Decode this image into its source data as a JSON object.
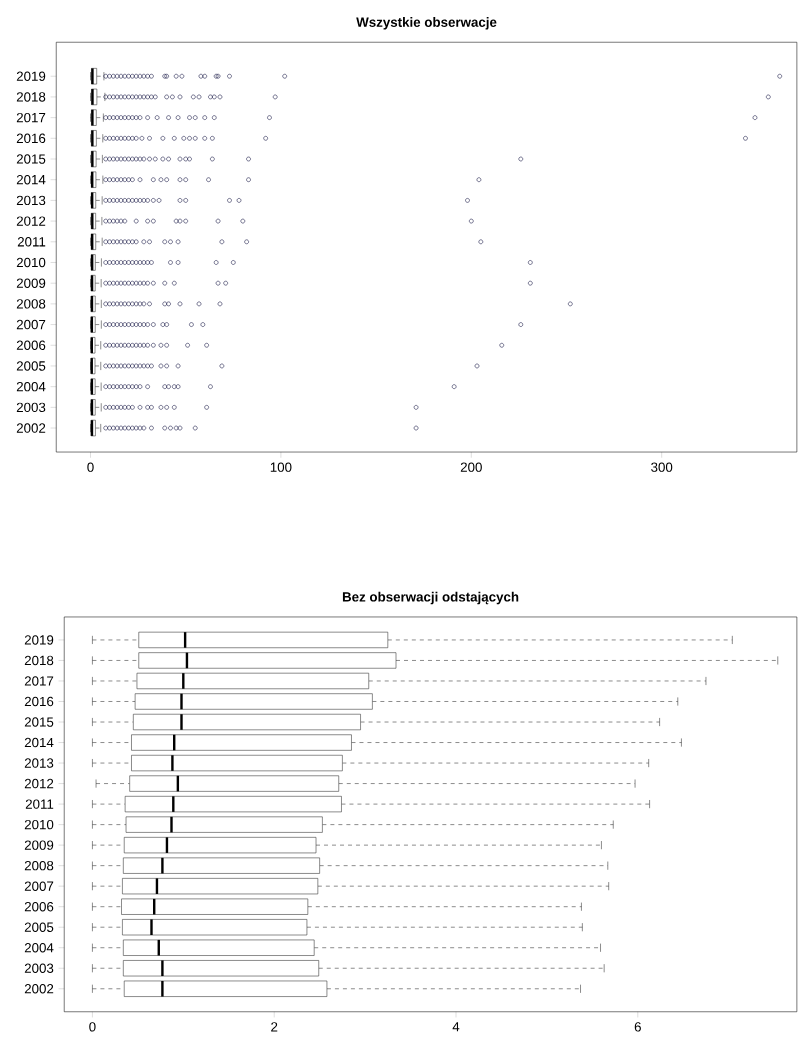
{
  "chart_data": [
    {
      "type": "box",
      "title": "**Wszystkie obserwacje**",
      "orientation": "horizontal",
      "marker": "circle",
      "categories": [
        "2019",
        "2018",
        "2017",
        "2016",
        "2015",
        "2014",
        "2013",
        "2012",
        "2011",
        "2010",
        "2009",
        "2008",
        "2007",
        "2006",
        "2005",
        "2004",
        "2003",
        "2002"
      ],
      "xlim": [
        -18,
        371
      ],
      "xticks": [
        0,
        100,
        200,
        300
      ],
      "boxes": [
        {
          "low": 0,
          "q1": 0.51,
          "median": 1.02,
          "q3": 3.25,
          "high": 7.04,
          "outliers": [
            8,
            10,
            12,
            14,
            16,
            18,
            20,
            22,
            24,
            26,
            28,
            30,
            32,
            39,
            40,
            45,
            48,
            58,
            60,
            66,
            67,
            73,
            102,
            362
          ]
        },
        {
          "low": 0,
          "q1": 0.51,
          "median": 1.04,
          "q3": 3.34,
          "high": 7.54,
          "outliers": [
            8,
            10,
            12,
            14,
            16,
            18,
            20,
            22,
            24,
            26,
            28,
            30,
            32,
            34,
            40,
            43,
            47,
            54,
            57,
            63,
            65,
            68,
            97,
            356
          ]
        },
        {
          "low": 0,
          "q1": 0.49,
          "median": 1.0,
          "q3": 3.04,
          "high": 6.75,
          "outliers": [
            8,
            10,
            12,
            14,
            16,
            18,
            20,
            22,
            24,
            26,
            30,
            35,
            41,
            46,
            52,
            55,
            60,
            65,
            94,
            349
          ]
        },
        {
          "low": 0,
          "q1": 0.47,
          "median": 0.98,
          "q3": 3.08,
          "high": 6.44,
          "outliers": [
            8,
            10,
            12,
            14,
            16,
            18,
            20,
            22,
            24,
            27,
            31,
            38,
            44,
            49,
            52,
            55,
            60,
            64,
            92,
            344
          ]
        },
        {
          "low": 0,
          "q1": 0.45,
          "median": 0.98,
          "q3": 2.95,
          "high": 6.24,
          "outliers": [
            8,
            10,
            12,
            14,
            16,
            18,
            20,
            22,
            24,
            26,
            28,
            31,
            34,
            38,
            41,
            47,
            50,
            52,
            64,
            83,
            226
          ]
        },
        {
          "low": 0,
          "q1": 0.43,
          "median": 0.9,
          "q3": 2.85,
          "high": 6.48,
          "outliers": [
            8,
            10,
            12,
            14,
            16,
            18,
            20,
            22,
            26,
            33,
            37,
            40,
            47,
            50,
            62,
            83,
            204
          ]
        },
        {
          "low": 0,
          "q1": 0.43,
          "median": 0.88,
          "q3": 2.75,
          "high": 6.12,
          "outliers": [
            8,
            10,
            12,
            14,
            16,
            18,
            20,
            22,
            24,
            26,
            28,
            30,
            33,
            36,
            47,
            50,
            73,
            78,
            198
          ]
        },
        {
          "low": 0.04,
          "q1": 0.41,
          "median": 0.94,
          "q3": 2.71,
          "high": 5.97,
          "outliers": [
            8,
            10,
            12,
            14,
            16,
            18,
            24,
            30,
            33,
            45,
            47,
            50,
            67,
            80,
            200
          ]
        },
        {
          "low": 0,
          "q1": 0.36,
          "median": 0.89,
          "q3": 2.74,
          "high": 6.13,
          "outliers": [
            8,
            10,
            12,
            14,
            16,
            18,
            20,
            22,
            24,
            28,
            31,
            39,
            42,
            46,
            69,
            82,
            205
          ]
        },
        {
          "low": 0,
          "q1": 0.37,
          "median": 0.87,
          "q3": 2.53,
          "high": 5.73,
          "outliers": [
            8,
            10,
            12,
            14,
            16,
            18,
            20,
            22,
            24,
            26,
            28,
            30,
            32,
            42,
            46,
            66,
            75,
            231
          ]
        },
        {
          "low": 0,
          "q1": 0.35,
          "median": 0.82,
          "q3": 2.46,
          "high": 5.6,
          "outliers": [
            8,
            10,
            12,
            14,
            16,
            18,
            20,
            22,
            24,
            26,
            28,
            30,
            33,
            39,
            44,
            67,
            71,
            231
          ]
        },
        {
          "low": 0,
          "q1": 0.34,
          "median": 0.77,
          "q3": 2.5,
          "high": 5.67,
          "outliers": [
            8,
            10,
            12,
            14,
            16,
            18,
            20,
            22,
            24,
            26,
            28,
            31,
            39,
            41,
            47,
            57,
            68,
            252
          ]
        },
        {
          "low": 0,
          "q1": 0.33,
          "median": 0.71,
          "q3": 2.48,
          "high": 5.68,
          "outliers": [
            8,
            10,
            12,
            14,
            16,
            18,
            20,
            22,
            24,
            26,
            28,
            30,
            33,
            38,
            40,
            53,
            59,
            226
          ]
        },
        {
          "low": 0,
          "q1": 0.32,
          "median": 0.68,
          "q3": 2.37,
          "high": 5.38,
          "outliers": [
            8,
            10,
            12,
            14,
            16,
            18,
            20,
            22,
            24,
            26,
            28,
            30,
            33,
            37,
            40,
            51,
            61,
            216
          ]
        },
        {
          "low": 0,
          "q1": 0.33,
          "median": 0.65,
          "q3": 2.36,
          "high": 5.39,
          "outliers": [
            8,
            10,
            12,
            14,
            16,
            18,
            20,
            22,
            24,
            26,
            28,
            30,
            32,
            37,
            40,
            46,
            69,
            203
          ]
        },
        {
          "low": 0,
          "q1": 0.34,
          "median": 0.73,
          "q3": 2.44,
          "high": 5.59,
          "outliers": [
            8,
            10,
            12,
            14,
            16,
            18,
            20,
            22,
            24,
            26,
            30,
            39,
            41,
            44,
            46,
            63,
            191
          ]
        },
        {
          "low": 0,
          "q1": 0.34,
          "median": 0.77,
          "q3": 2.49,
          "high": 5.63,
          "outliers": [
            8,
            10,
            12,
            14,
            16,
            18,
            20,
            22,
            26,
            30,
            32,
            37,
            40,
            44,
            61,
            171
          ]
        },
        {
          "low": 0,
          "q1": 0.35,
          "median": 0.77,
          "q3": 2.58,
          "high": 5.37,
          "outliers": [
            8,
            10,
            12,
            14,
            16,
            18,
            20,
            22,
            24,
            26,
            28,
            32,
            39,
            42,
            45,
            47,
            55,
            171
          ]
        }
      ]
    },
    {
      "type": "box",
      "title": "**Bez obserwacji odstających**",
      "orientation": "horizontal",
      "categories": [
        "2019",
        "2018",
        "2017",
        "2016",
        "2015",
        "2014",
        "2013",
        "2012",
        "2011",
        "2010",
        "2009",
        "2008",
        "2007",
        "2006",
        "2005",
        "2004",
        "2003",
        "2002"
      ],
      "xlim": [
        -0.31,
        7.75
      ],
      "xticks": [
        0,
        2,
        4,
        6
      ],
      "boxes": [
        {
          "low": 0,
          "q1": 0.51,
          "median": 1.02,
          "q3": 3.25,
          "high": 7.04
        },
        {
          "low": 0,
          "q1": 0.51,
          "median": 1.04,
          "q3": 3.34,
          "high": 7.54
        },
        {
          "low": 0,
          "q1": 0.49,
          "median": 1.0,
          "q3": 3.04,
          "high": 6.75
        },
        {
          "low": 0,
          "q1": 0.47,
          "median": 0.98,
          "q3": 3.08,
          "high": 6.44
        },
        {
          "low": 0,
          "q1": 0.45,
          "median": 0.98,
          "q3": 2.95,
          "high": 6.24
        },
        {
          "low": 0,
          "q1": 0.43,
          "median": 0.9,
          "q3": 2.85,
          "high": 6.48
        },
        {
          "low": 0,
          "q1": 0.43,
          "median": 0.88,
          "q3": 2.75,
          "high": 6.12
        },
        {
          "low": 0.04,
          "q1": 0.41,
          "median": 0.94,
          "q3": 2.71,
          "high": 5.97
        },
        {
          "low": 0,
          "q1": 0.36,
          "median": 0.89,
          "q3": 2.74,
          "high": 6.13
        },
        {
          "low": 0,
          "q1": 0.37,
          "median": 0.87,
          "q3": 2.53,
          "high": 5.73
        },
        {
          "low": 0,
          "q1": 0.35,
          "median": 0.82,
          "q3": 2.46,
          "high": 5.6
        },
        {
          "low": 0,
          "q1": 0.34,
          "median": 0.77,
          "q3": 2.5,
          "high": 5.67
        },
        {
          "low": 0,
          "q1": 0.33,
          "median": 0.71,
          "q3": 2.48,
          "high": 5.68
        },
        {
          "low": 0,
          "q1": 0.32,
          "median": 0.68,
          "q3": 2.37,
          "high": 5.38
        },
        {
          "low": 0,
          "q1": 0.33,
          "median": 0.65,
          "q3": 2.36,
          "high": 5.39
        },
        {
          "low": 0,
          "q1": 0.34,
          "median": 0.73,
          "q3": 2.44,
          "high": 5.59
        },
        {
          "low": 0,
          "q1": 0.34,
          "median": 0.77,
          "q3": 2.49,
          "high": 5.63
        },
        {
          "low": 0,
          "q1": 0.35,
          "median": 0.77,
          "q3": 2.58,
          "high": 5.37
        }
      ]
    }
  ]
}
